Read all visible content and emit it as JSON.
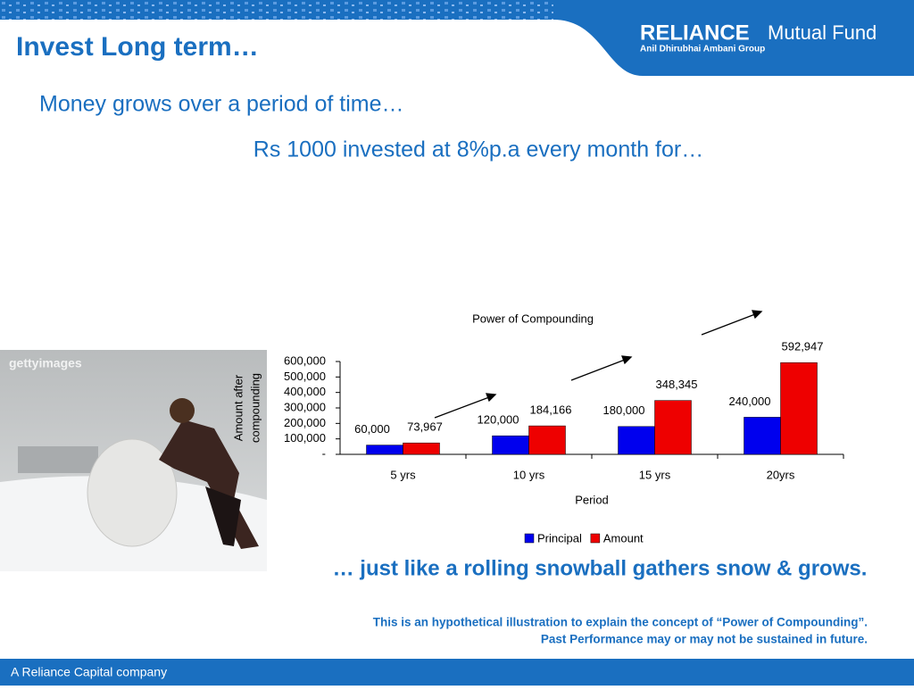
{
  "header": {
    "title": "Invest Long term…",
    "logo_brand": "RELIANCE",
    "logo_product": "Mutual Fund",
    "logo_group": "Anil Dhirubhai Ambani Group"
  },
  "subtitle": "Money grows over a period of time…",
  "premise": "Rs 1000 invested at 8%p.a every month for…",
  "photo_watermark": "gettyimages",
  "chart_data": {
    "type": "bar",
    "title": "Power of Compounding",
    "categories": [
      "5 yrs",
      "10 yrs",
      "15 yrs",
      "20yrs"
    ],
    "series": [
      {
        "name": "Principal",
        "color": "#0000ee",
        "values": [
          60000,
          120000,
          180000,
          240000
        ],
        "value_labels": [
          "60,000",
          "120,000",
          "180,000",
          "240,000"
        ]
      },
      {
        "name": "Amount",
        "color": "#ee0000",
        "values": [
          73967,
          184166,
          348345,
          592947
        ],
        "value_labels": [
          "73,967",
          "184,166",
          "348,345",
          "592,947"
        ]
      }
    ],
    "ylim": [
      0,
      600000
    ],
    "yticks": [
      {
        "value": 0,
        "label": "-"
      },
      {
        "value": 100000,
        "label": "100,000"
      },
      {
        "value": 200000,
        "label": "200,000"
      },
      {
        "value": 300000,
        "label": "300,000"
      },
      {
        "value": 400000,
        "label": "400,000"
      },
      {
        "value": 500000,
        "label": "500,000"
      },
      {
        "value": 600000,
        "label": "600,000"
      }
    ],
    "xlabel": "Period",
    "ylabel": [
      "Amount after",
      "compounding"
    ],
    "legend": "bottom",
    "grid": false
  },
  "tagline": "… just like a rolling snowball gathers snow & grows.",
  "disclaimer": [
    "This is an hypothetical illustration to explain the concept of “Power of Compounding”.",
    "Past Performance may or may not be sustained in future."
  ],
  "footer": "A Reliance Capital company"
}
